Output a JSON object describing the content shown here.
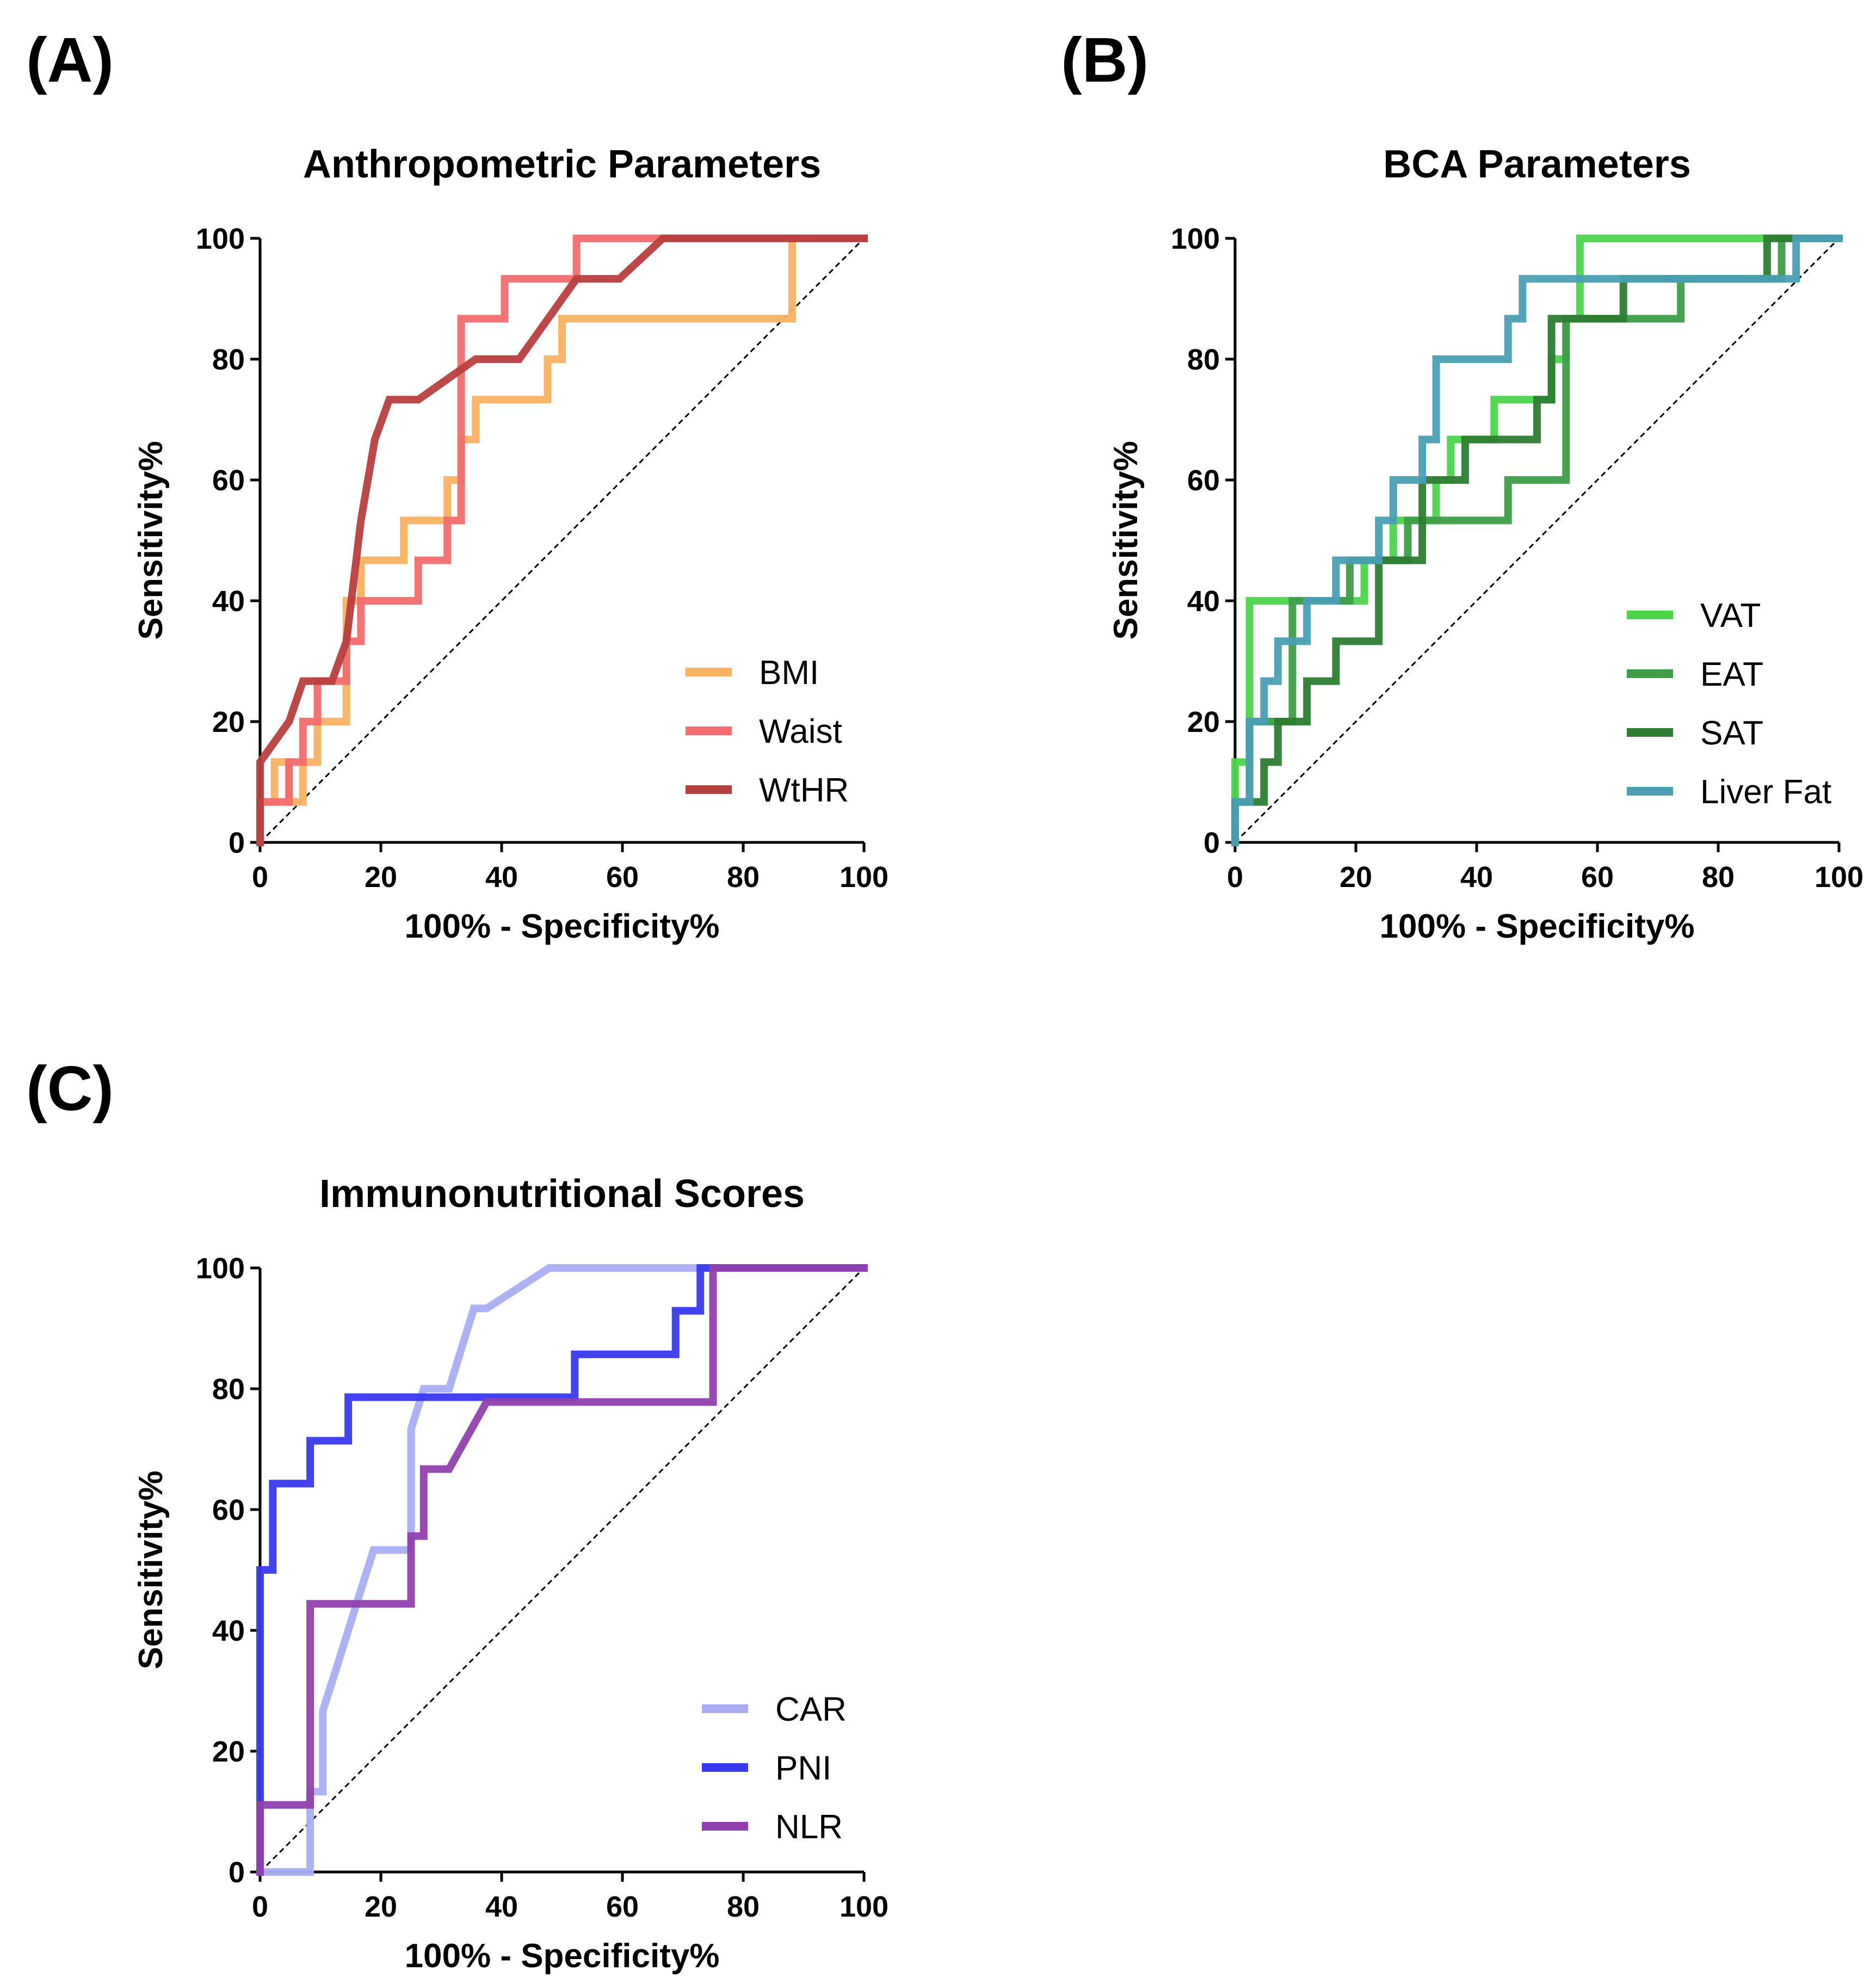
{
  "figure": {
    "panels": [
      "(A)",
      "(B)",
      "(C)"
    ]
  },
  "chart_data": [
    {
      "panel": "(A)",
      "type": "line",
      "title": "Anthropometric Parameters",
      "xlabel": "100% - Specificity%",
      "ylabel": "Sensitivity%",
      "xlim": [
        0,
        100
      ],
      "ylim": [
        0,
        100
      ],
      "xticks": [
        0,
        20,
        40,
        60,
        80,
        100
      ],
      "yticks": [
        0,
        20,
        40,
        60,
        80,
        100
      ],
      "reference_line": true,
      "legend_position": "bottom-right",
      "series": [
        {
          "name": "BMI",
          "color": "#F9B262",
          "x": [
            0,
            0,
            2.4,
            2.4,
            4.8,
            4.8,
            7.1,
            7.1,
            9.5,
            9.5,
            14.3,
            14.3,
            16.7,
            16.7,
            23.8,
            23.8,
            31,
            31,
            33.3,
            33.3,
            35.7,
            35.7,
            47.6,
            47.6,
            50,
            50,
            52.4,
            52.4,
            54.8,
            54.8,
            88.1,
            88.1,
            100
          ],
          "y": [
            0,
            6.7,
            6.7,
            13.3,
            13.3,
            6.7,
            6.7,
            13.3,
            13.3,
            20,
            20,
            40,
            40,
            46.7,
            46.7,
            53.3,
            53.3,
            60,
            60,
            66.7,
            66.7,
            73.3,
            73.3,
            80,
            80,
            86.7,
            86.7,
            86.7,
            86.7,
            86.7,
            86.7,
            100,
            100
          ]
        },
        {
          "name": "Waist",
          "color": "#F26D6D",
          "x": [
            0,
            0,
            4.8,
            4.8,
            7.1,
            7.1,
            9.5,
            9.5,
            14.3,
            14.3,
            16.7,
            16.7,
            19,
            19,
            26.2,
            26.2,
            28.6,
            28.6,
            31,
            31,
            33.3,
            33.3,
            35.7,
            35.7,
            40.5,
            40.5,
            42.9,
            42.9,
            52.4,
            52.4,
            100
          ],
          "y": [
            0,
            6.7,
            6.7,
            13.3,
            13.3,
            20,
            20,
            26.7,
            26.7,
            33.3,
            33.3,
            40,
            40,
            40,
            40,
            46.7,
            46.7,
            46.7,
            46.7,
            53.3,
            53.3,
            86.7,
            86.7,
            86.7,
            86.7,
            93.3,
            93.3,
            93.3,
            93.3,
            100,
            100
          ]
        },
        {
          "name": "WtHR",
          "color": "#B83E3E",
          "x": [
            0,
            0,
            4.8,
            7.1,
            11.9,
            14.3,
            16.7,
            19,
            21.4,
            26.2,
            35.7,
            42.9,
            52.4,
            59.5,
            66.7,
            100
          ],
          "y": [
            0,
            13.3,
            20,
            26.7,
            26.7,
            33.3,
            53.3,
            66.7,
            73.3,
            73.3,
            80,
            80,
            93.3,
            93.3,
            100,
            100
          ]
        }
      ]
    },
    {
      "panel": "(B)",
      "type": "line",
      "title": "BCA Parameters",
      "xlabel": "100% - Specificity%",
      "ylabel": "Sensitivity%",
      "xlim": [
        0,
        100
      ],
      "ylim": [
        0,
        100
      ],
      "xticks": [
        0,
        20,
        40,
        60,
        80,
        100
      ],
      "yticks": [
        0,
        20,
        40,
        60,
        80,
        100
      ],
      "reference_line": true,
      "legend_position": "bottom-right",
      "series": [
        {
          "name": "VAT",
          "color": "#4CD44C",
          "x": [
            0,
            0,
            2.4,
            2.4,
            21.4,
            21.4,
            26.2,
            26.2,
            33.3,
            33.3,
            35.7,
            35.7,
            42.9,
            42.9,
            52.4,
            52.4,
            54.8,
            54.8,
            57.1,
            57.1,
            100
          ],
          "y": [
            0,
            13.3,
            13.3,
            40,
            40,
            46.7,
            46.7,
            53.3,
            53.3,
            60,
            60,
            66.7,
            66.7,
            73.3,
            73.3,
            80,
            80,
            86.7,
            86.7,
            100,
            100
          ]
        },
        {
          "name": "EAT",
          "color": "#3E9E48",
          "x": [
            0,
            0,
            2.4,
            2.4,
            9.5,
            9.5,
            14.3,
            14.3,
            19,
            19,
            23.8,
            23.8,
            28.6,
            28.6,
            33.3,
            33.3,
            45.2,
            45.2,
            54.8,
            54.8,
            57.1,
            57.1,
            73.8,
            73.8,
            90.5,
            90.5,
            100
          ],
          "y": [
            0,
            6.7,
            6.7,
            20,
            20,
            40,
            40,
            40,
            40,
            46.7,
            46.7,
            46.7,
            46.7,
            53.3,
            53.3,
            53.3,
            53.3,
            60,
            60,
            86.7,
            86.7,
            86.7,
            86.7,
            93.3,
            93.3,
            100,
            100
          ]
        },
        {
          "name": "SAT",
          "color": "#2E7D32",
          "x": [
            0,
            0,
            4.8,
            4.8,
            7.1,
            7.1,
            11.9,
            11.9,
            16.7,
            16.7,
            23.8,
            23.8,
            26.2,
            26.2,
            31,
            31,
            38.1,
            38.1,
            50,
            50,
            52.4,
            52.4,
            64.3,
            64.3,
            88.1,
            88.1,
            100
          ],
          "y": [
            0,
            6.7,
            6.7,
            13.3,
            13.3,
            20,
            20,
            26.7,
            26.7,
            33.3,
            33.3,
            46.7,
            46.7,
            46.7,
            46.7,
            60,
            60,
            66.7,
            66.7,
            73.3,
            73.3,
            86.7,
            86.7,
            93.3,
            93.3,
            100,
            100
          ]
        },
        {
          "name": "Liver Fat",
          "color": "#4A9FB5",
          "x": [
            0,
            0,
            2.4,
            2.4,
            4.8,
            4.8,
            7.1,
            7.1,
            11.9,
            11.9,
            16.7,
            16.7,
            23.8,
            23.8,
            26.2,
            26.2,
            28.6,
            28.6,
            31,
            31,
            33.3,
            33.3,
            38.1,
            38.1,
            45.2,
            45.2,
            47.6,
            47.6,
            64.3,
            64.3,
            92.9,
            92.9,
            100
          ],
          "y": [
            0,
            6.7,
            6.7,
            20,
            20,
            26.7,
            26.7,
            33.3,
            33.3,
            40,
            40,
            46.7,
            46.7,
            53.3,
            53.3,
            60,
            60,
            60,
            60,
            66.7,
            66.7,
            80,
            80,
            80,
            80,
            86.7,
            86.7,
            93.3,
            93.3,
            93.3,
            93.3,
            100,
            100
          ]
        }
      ]
    },
    {
      "panel": "(C)",
      "type": "line",
      "title": "Immunonutritional Scores",
      "xlabel": "100% - Specificity%",
      "ylabel": "Sensitivity%",
      "xlim": [
        0,
        100
      ],
      "ylim": [
        0,
        100
      ],
      "xticks": [
        0,
        20,
        40,
        60,
        80,
        100
      ],
      "yticks": [
        0,
        20,
        40,
        60,
        80,
        100
      ],
      "reference_line": true,
      "legend_position": "bottom-right",
      "series": [
        {
          "name": "CAR",
          "color": "#A9AEF3",
          "x": [
            0,
            8.3,
            8.3,
            10.4,
            10.4,
            12.5,
            12.5,
            14.6,
            14.6,
            16.7,
            16.7,
            18.8,
            20.8,
            25,
            25,
            27.1,
            27.1,
            31.3,
            35.4,
            37.5,
            47.9,
            100
          ],
          "y": [
            0,
            0,
            13.3,
            13.3,
            26.7,
            33.3,
            33.3,
            40,
            40,
            46.7,
            46.7,
            53.3,
            53.3,
            53.3,
            73.3,
            80,
            80,
            80,
            93.3,
            93.3,
            100,
            100
          ]
        },
        {
          "name": "PNI",
          "color": "#3838EE",
          "x": [
            0,
            0,
            2.1,
            2.1,
            4.2,
            4.2,
            8.3,
            8.3,
            10.4,
            10.4,
            14.6,
            14.6,
            47.9,
            52.1,
            52.1,
            68.8,
            68.8,
            70.8,
            72.9,
            72.9,
            100
          ],
          "y": [
            0,
            50,
            50,
            64.3,
            64.3,
            64.3,
            64.3,
            71.4,
            71.4,
            71.4,
            71.4,
            78.6,
            78.6,
            78.6,
            85.7,
            85.7,
            92.9,
            92.9,
            92.9,
            100,
            100
          ]
        },
        {
          "name": "NLR",
          "color": "#9040AE",
          "x": [
            0,
            0,
            8.3,
            8.3,
            25,
            25,
            27.1,
            27.1,
            29.2,
            31.3,
            37.5,
            75,
            75,
            100
          ],
          "y": [
            0,
            11.1,
            11.1,
            44.4,
            44.4,
            55.6,
            55.6,
            66.7,
            66.7,
            66.7,
            77.8,
            77.8,
            100,
            100
          ]
        }
      ]
    }
  ]
}
